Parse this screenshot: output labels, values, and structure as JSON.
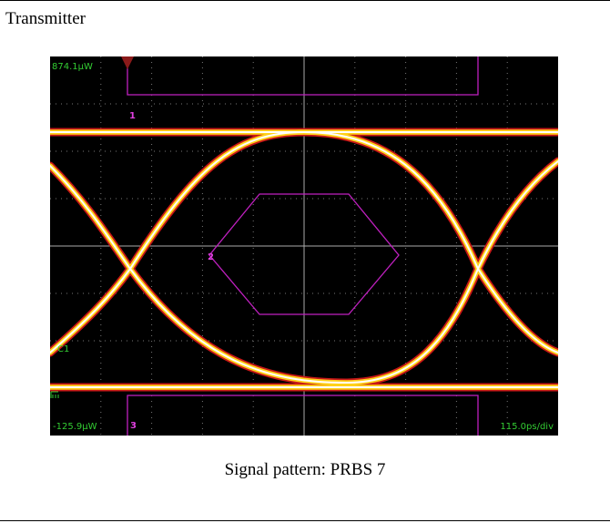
{
  "header": {
    "title": "Transmitter"
  },
  "scope": {
    "top_level": "874.1µW",
    "bottom_level": "-125.9µW",
    "timebase": "115.0ps/div",
    "channel": "C1",
    "masks": [
      "1",
      "2",
      "3"
    ]
  },
  "caption": "Signal pattern: PRBS 7"
}
